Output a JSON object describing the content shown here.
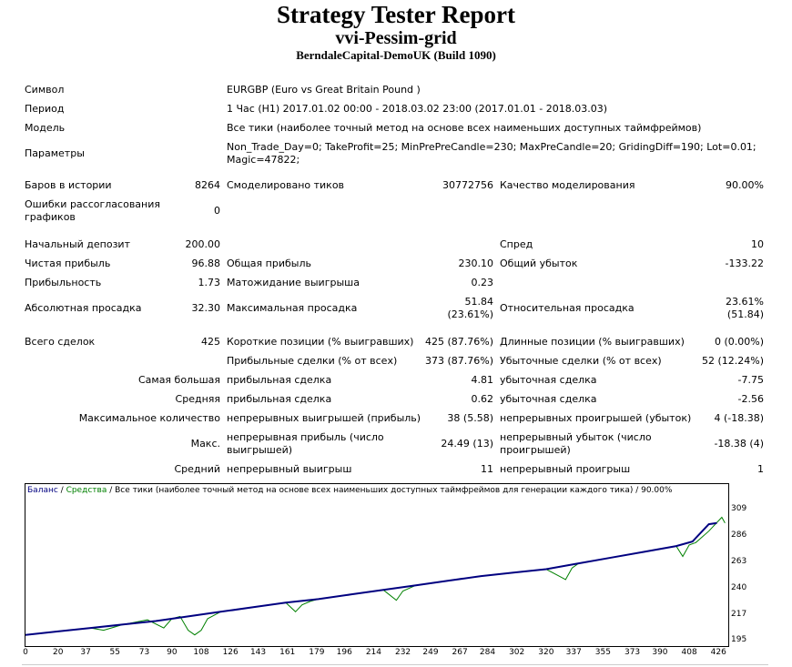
{
  "report": {
    "title": "Strategy Tester Report",
    "ea_name": "vvi-Pessim-grid",
    "server": "BerndaleCapital-DemoUK (Build 1090)"
  },
  "info": {
    "symbol_label": "Символ",
    "symbol": "EURGBP (Euro vs Great Britain Pound )",
    "period_label": "Период",
    "period": "1 Час (H1) 2017.01.02 00:00 - 2018.03.02 23:00 (2017.01.01 - 2018.03.03)",
    "model_label": "Модель",
    "model": "Все тики (наиболее точный метод на основе всех наименьших доступных таймфреймов)",
    "params_label": "Параметры",
    "params_line1": "Non_Trade_Day=0; TakeProfit=25; MinPrePreCandle=230; MaxPreCandle=20; GridingDiff=190; Lot=0.01;",
    "params_line2": "Magic=47822;"
  },
  "stats": {
    "bars_label": "Баров в истории",
    "bars": "8264",
    "ticks_label": "Смоделировано тиков",
    "ticks": "30772756",
    "quality_label": "Качество моделирования",
    "quality": "90.00%",
    "mismatch_label1": "Ошибки рассогласования",
    "mismatch_label2": "графиков",
    "mismatch": "0",
    "deposit_label": "Начальный депозит",
    "deposit": "200.00",
    "spread_label": "Спред",
    "spread": "10",
    "net_label": "Чистая прибыль",
    "net": "96.88",
    "gross_profit_label": "Общая прибыль",
    "gross_profit": "230.10",
    "gross_loss_label": "Общий убыток",
    "gross_loss": "-133.22",
    "pf_label": "Прибыльность",
    "pf": "1.73",
    "expected_label": "Матожидание выигрыша",
    "expected": "0.23",
    "abs_dd_label": "Абсолютная просадка",
    "abs_dd": "32.30",
    "max_dd_label": "Максимальная просадка",
    "max_dd_1": "51.84",
    "max_dd_2": "(23.61%)",
    "rel_dd_label": "Относительная просадка",
    "rel_dd_1": "23.61%",
    "rel_dd_2": "(51.84)",
    "total_label": "Всего сделок",
    "total": "425",
    "short_label": "Короткие позиции (% выигравших)",
    "short": "425 (87.76%)",
    "long_label": "Длинные позиции (% выигравших)",
    "long": "0 (0.00%)",
    "profit_trades_label": "Прибыльные сделки (% от всех)",
    "profit_trades": "373 (87.76%)",
    "loss_trades_label": "Убыточные сделки (% от всех)",
    "loss_trades": "52 (12.24%)",
    "largest_label": "Самая большая",
    "largest_profit_label": "прибыльная сделка",
    "largest_profit": "4.81",
    "largest_loss_label": "убыточная сделка",
    "largest_loss": "-7.75",
    "avg_label": "Средняя",
    "avg_profit_label": "прибыльная сделка",
    "avg_profit": "0.62",
    "avg_loss_label": "убыточная сделка",
    "avg_loss": "-2.56",
    "maxcount_label": "Максимальное количество",
    "maxcons_wins_label": "непрерывных выигрышей (прибыль)",
    "maxcons_wins": "38 (5.58)",
    "maxcons_losses_label": "непрерывных проигрышей (убыток)",
    "maxcons_losses": "4 (-18.38)",
    "max_label": "Макс.",
    "maxprofit_label1": "непрерывная прибыль (число",
    "maxprofit_label2": "выигрышей)",
    "maxprofit": "24.49 (13)",
    "maxloss_label1": "непрерывный убыток (число",
    "maxloss_label2": "проигрышей)",
    "maxloss": "-18.38 (4)",
    "avgcons_label": "Средний",
    "avgcons_wins_label": "непрерывный выигрыш",
    "avgcons_wins": "11",
    "avgcons_losses_label": "непрерывный проигрыш",
    "avgcons_losses": "1"
  },
  "chart_data": {
    "type": "line",
    "legend_balance": "Баланс",
    "legend_sep": " / ",
    "legend_equity": "Средства",
    "legend_rest": " / Все тики (наиболее точный метод на основе всех наименьших доступных таймфреймов для генерации каждого тика) / 90.00%",
    "colors": {
      "balance": "#000080",
      "equity": "#008000"
    },
    "xlim": [
      0,
      432
    ],
    "ylim": [
      195,
      315
    ],
    "x_ticks": [
      0,
      20,
      37,
      55,
      73,
      90,
      108,
      126,
      143,
      161,
      179,
      196,
      214,
      232,
      249,
      267,
      284,
      302,
      320,
      337,
      355,
      373,
      390,
      408,
      426
    ],
    "y_ticks": [
      195,
      217,
      240,
      263,
      286,
      309
    ],
    "series": [
      {
        "x": [
          0,
          20,
          40,
          60,
          80,
          100,
          120,
          140,
          160,
          180,
          200,
          220,
          240,
          260,
          280,
          300,
          320,
          340,
          360,
          380,
          400,
          410,
          420,
          425
        ],
        "values": [
          200,
          203,
          206,
          209,
          212,
          216,
          220,
          224,
          228,
          231,
          235,
          239,
          243,
          247,
          251,
          254,
          257,
          262,
          267,
          272,
          277,
          281,
          296,
          297
        ]
      },
      {
        "x": [
          0,
          40,
          48,
          60,
          75,
          85,
          90,
          95,
          100,
          104,
          108,
          112,
          120,
          140,
          160,
          166,
          170,
          175,
          180,
          200,
          220,
          228,
          232,
          240,
          260,
          280,
          300,
          320,
          332,
          336,
          340,
          360,
          380,
          400,
          404,
          408,
          412,
          420,
          428,
          430
        ],
        "values": [
          200,
          206,
          204,
          209,
          213,
          206,
          214,
          216,
          204,
          200,
          204,
          214,
          220,
          224,
          228,
          220,
          226,
          229,
          231,
          235,
          239,
          230,
          238,
          243,
          247,
          251,
          254,
          257,
          248,
          258,
          262,
          267,
          272,
          277,
          268,
          278,
          280,
          290,
          302,
          297
        ]
      }
    ]
  }
}
